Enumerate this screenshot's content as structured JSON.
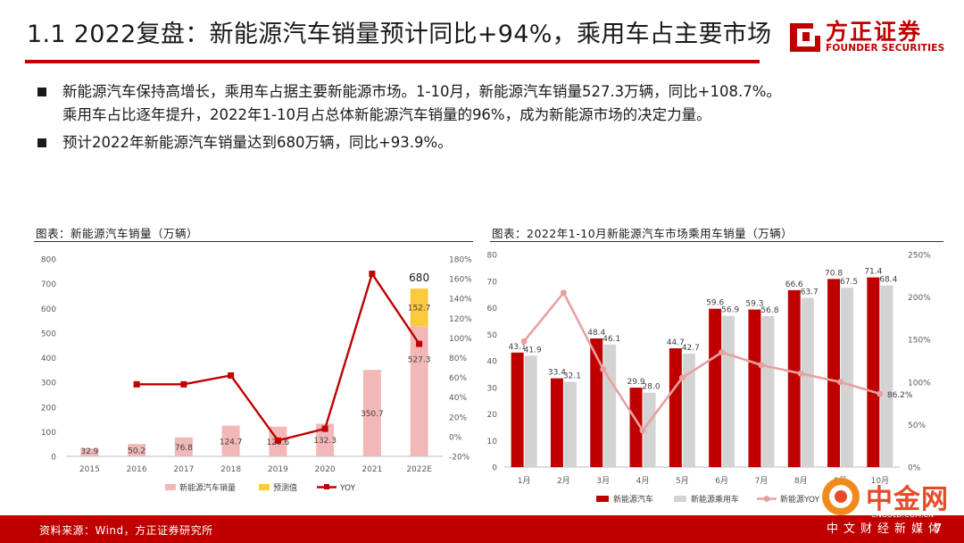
{
  "header": {
    "title": "1.1 2022复盘：新能源汽车销量预计同比+94%，乘用车占主要市场",
    "logo_cn": "方正证券",
    "logo_en": "FOUNDER SECURITIES"
  },
  "bullets": [
    {
      "lines": [
        "新能源汽车保持高增长，乘用车占据主要新能源市场。1-10月，新能源汽车销量527.3万辆，同比+108.7%。",
        "乘用车占比逐年提升，2022年1-10月占总体新能源汽车销量的96%，成为新能源市场的决定力量。"
      ]
    },
    {
      "lines": [
        "预计2022年新能源汽车销量达到680万辆，同比+93.9%。"
      ]
    }
  ],
  "chart_titles": {
    "left": "图表：新能源汽车销量（万辆）",
    "right": "图表：2022年1-10月新能源汽车市场乘用车销量（万辆）"
  },
  "chart_data": [
    {
      "type": "bar",
      "categories": [
        "2015",
        "2016",
        "2017",
        "2018",
        "2019",
        "2020",
        "2021",
        "2022E"
      ],
      "series": [
        {
          "name": "新能源汽车销量",
          "kind": "bar",
          "color": "#f2b8b8",
          "values": [
            32.9,
            50.2,
            76.8,
            124.7,
            120.6,
            132.3,
            350.7,
            527.3
          ]
        },
        {
          "name": "预测值",
          "kind": "bar-stack",
          "color": "#fbc93d",
          "values": [
            null,
            null,
            null,
            null,
            null,
            null,
            null,
            152.7
          ]
        },
        {
          "name": "YOY",
          "kind": "line",
          "axis": "right",
          "color": "#c00000",
          "values": [
            null,
            53,
            53,
            62,
            -4,
            8,
            165,
            94
          ]
        }
      ],
      "total_label": {
        "category": "2022E",
        "value": 680
      },
      "ylim": [
        0,
        800
      ],
      "yticks": [
        "0",
        "100",
        "200",
        "300",
        "400",
        "500",
        "600",
        "700",
        "800"
      ],
      "y2lim": [
        -20,
        180
      ],
      "y2ticks": [
        "-20%",
        "0%",
        "20%",
        "40%",
        "60%",
        "80%",
        "100%",
        "120%",
        "140%",
        "160%",
        "180%"
      ],
      "legend": "bottom"
    },
    {
      "type": "bar",
      "categories": [
        "1月",
        "2月",
        "3月",
        "4月",
        "5月",
        "6月",
        "7月",
        "8月",
        "9月",
        "10月"
      ],
      "series": [
        {
          "name": "新能源汽车",
          "kind": "bar",
          "color": "#c00000",
          "values": [
            43.1,
            33.4,
            48.4,
            29.9,
            44.7,
            59.6,
            59.3,
            66.6,
            70.8,
            71.4
          ]
        },
        {
          "name": "新能源乘用车",
          "kind": "bar",
          "color": "#d3d3d3",
          "values": [
            41.9,
            32.1,
            46.1,
            28.0,
            42.7,
            56.9,
            56.8,
            63.7,
            67.5,
            68.4
          ]
        },
        {
          "name": "新能源YOY",
          "kind": "line",
          "axis": "right",
          "color": "#e8a0a0",
          "values": [
            148,
            205,
            115,
            43,
            105,
            135,
            120,
            110,
            100,
            86.2
          ]
        }
      ],
      "yoy_label": {
        "category": "10月",
        "text": "86.2%"
      },
      "ylim": [
        0,
        80
      ],
      "yticks": [
        "0",
        "10",
        "20",
        "30",
        "40",
        "50",
        "60",
        "70",
        "80"
      ],
      "y2lim": [
        0,
        250
      ],
      "y2ticks": [
        "0%",
        "50%",
        "100%",
        "150%",
        "200%",
        "250%"
      ],
      "legend": "bottom"
    }
  ],
  "footer": {
    "source": "资料来源：Wind，方正证券研究所",
    "page": "7",
    "watermark_cn": "中金网",
    "watermark_url": "CNGOLD.COM.CN",
    "watermark_sub": "中文财经新媒体"
  }
}
